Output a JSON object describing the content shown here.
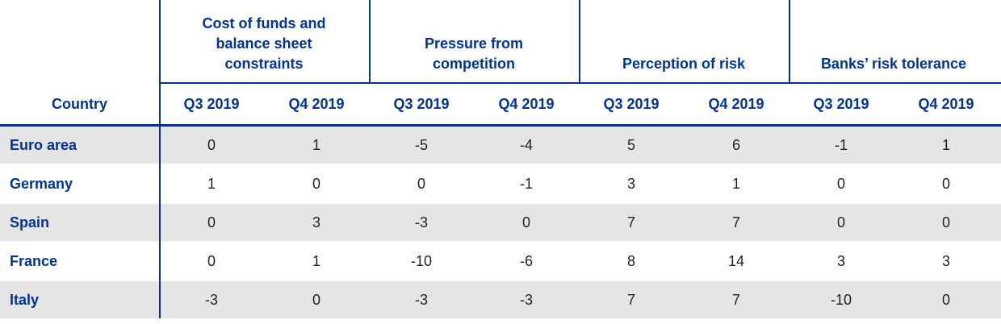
{
  "header": {
    "country": "Country",
    "groups": [
      {
        "title": "Cost of funds and balance sheet constraints",
        "periods": [
          "Q3 2019",
          "Q4 2019"
        ]
      },
      {
        "title": "Pressure from competition",
        "periods": [
          "Q3 2019",
          "Q4 2019"
        ]
      },
      {
        "title": "Perception of risk",
        "periods": [
          "Q3 2019",
          "Q4 2019"
        ]
      },
      {
        "title": "Banks’ risk tolerance",
        "periods": [
          "Q3 2019",
          "Q4 2019"
        ]
      }
    ]
  },
  "rows": [
    {
      "country": "Euro area",
      "values": [
        0,
        1,
        -5,
        -4,
        5,
        6,
        -1,
        1
      ]
    },
    {
      "country": "Germany",
      "values": [
        1,
        0,
        0,
        -1,
        3,
        1,
        0,
        0
      ]
    },
    {
      "country": "Spain",
      "values": [
        0,
        3,
        -3,
        0,
        7,
        7,
        0,
        0
      ]
    },
    {
      "country": "France",
      "values": [
        0,
        1,
        -10,
        -6,
        8,
        14,
        3,
        3
      ]
    },
    {
      "country": "Italy",
      "values": [
        -3,
        0,
        -3,
        -3,
        7,
        7,
        -10,
        0
      ]
    }
  ]
}
